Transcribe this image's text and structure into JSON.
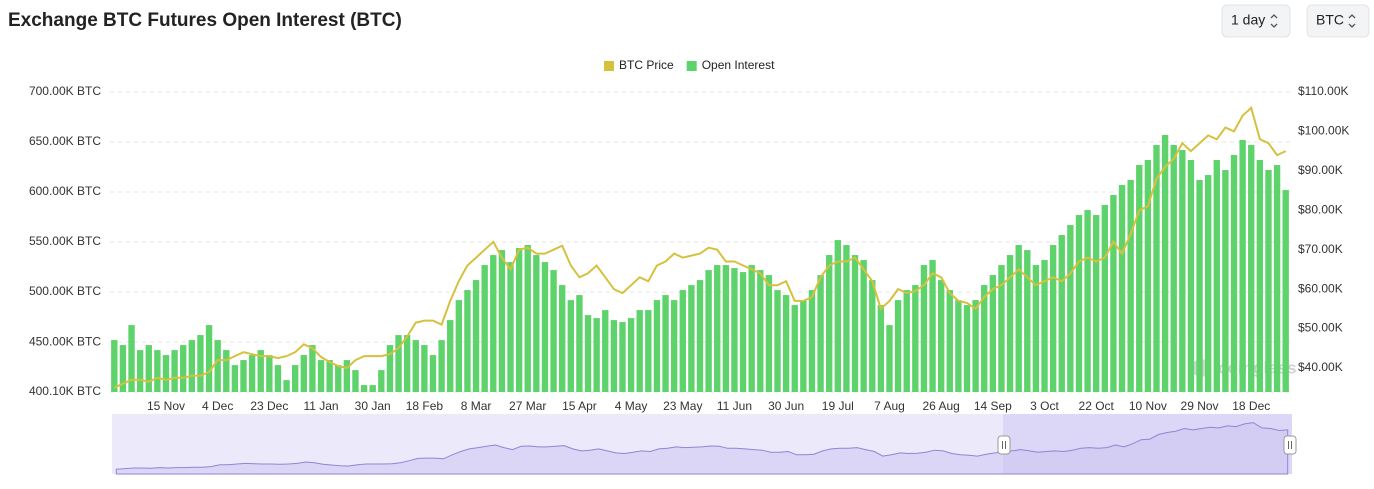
{
  "chart_data": {
    "type": "bar",
    "title": "Exchange BTC Futures Open Interest (BTC)",
    "controls": [
      "1 day",
      "BTC"
    ],
    "watermark": "coinglass",
    "categories": [
      null,
      null,
      null,
      null,
      null,
      null,
      "15 Nov",
      null,
      null,
      null,
      null,
      null,
      "4 Dec",
      null,
      null,
      null,
      null,
      null,
      "23 Dec",
      null,
      null,
      null,
      null,
      null,
      "11 Jan",
      null,
      null,
      null,
      null,
      null,
      "30 Jan",
      null,
      null,
      null,
      null,
      null,
      "18 Feb",
      null,
      null,
      null,
      null,
      null,
      "8 Mar",
      null,
      null,
      null,
      null,
      null,
      "27 Mar",
      null,
      null,
      null,
      null,
      null,
      "15 Apr",
      null,
      null,
      null,
      null,
      null,
      "4 May",
      null,
      null,
      null,
      null,
      null,
      "23 May",
      null,
      null,
      null,
      null,
      null,
      "11 Jun",
      null,
      null,
      null,
      null,
      null,
      "30 Jun",
      null,
      null,
      null,
      null,
      null,
      "19 Jul",
      null,
      null,
      null,
      null,
      null,
      "7 Aug",
      null,
      null,
      null,
      null,
      null,
      "26 Aug",
      null,
      null,
      null,
      null,
      null,
      "14 Sep",
      null,
      null,
      null,
      null,
      null,
      "3 Oct",
      null,
      null,
      null,
      null,
      null,
      "22 Oct",
      null,
      null,
      null,
      null,
      null,
      "10 Nov",
      null,
      null,
      null,
      null,
      null,
      "29 Nov",
      null,
      null,
      null,
      null,
      null,
      "18 Dec",
      null,
      null,
      null,
      null
    ],
    "series": [
      {
        "name": "BTC Price",
        "type": "line",
        "axis": "y2",
        "color": "#d6c13e",
        "values": [
          35000,
          36000,
          37000,
          37000,
          36500,
          37500,
          37000,
          37500,
          37500,
          38000,
          38000,
          39000,
          42000,
          42000,
          43000,
          44000,
          43500,
          43000,
          43000,
          42500,
          43000,
          44000,
          46000,
          45000,
          42800,
          41500,
          40500,
          40000,
          42000,
          43000,
          43000,
          43000,
          43500,
          45000,
          48000,
          51500,
          52000,
          52000,
          51000,
          57000,
          62000,
          66000,
          68000,
          70000,
          72000,
          68000,
          65000,
          70000,
          70500,
          69000,
          69000,
          70000,
          71000,
          66000,
          63000,
          64000,
          66000,
          63000,
          60000,
          59000,
          61000,
          63000,
          62000,
          66000,
          67000,
          69000,
          68000,
          68500,
          69000,
          70500,
          70000,
          67000,
          67000,
          66000,
          65000,
          64000,
          61000,
          61000,
          62000,
          57000,
          57000,
          58000,
          63000,
          66000,
          67000,
          67000,
          68000,
          65000,
          62000,
          55000,
          57000,
          60000,
          59000,
          59500,
          61000,
          64000,
          63000,
          59000,
          57000,
          56500,
          55000,
          58000,
          60000,
          61000,
          63000,
          65000,
          63000,
          61000,
          62000,
          63000,
          62000,
          64000,
          67000,
          68000,
          67000,
          68000,
          72000,
          69000,
          74000,
          80000,
          81000,
          88000,
          91000,
          93000,
          97000,
          95000,
          97000,
          99000,
          98000,
          101000,
          100000,
          104000,
          106000,
          98000,
          97000,
          94000,
          95000
        ]
      },
      {
        "name": "Open Interest",
        "type": "bar",
        "axis": "y",
        "color": "#5fd36b",
        "values": [
          452000,
          447000,
          467000,
          442000,
          447000,
          442000,
          437000,
          442000,
          447000,
          452000,
          457000,
          467000,
          452000,
          442000,
          427000,
          432000,
          437000,
          442000,
          437000,
          427000,
          412000,
          427000,
          437000,
          447000,
          432000,
          432000,
          427000,
          432000,
          422000,
          407000,
          407000,
          422000,
          447000,
          457000,
          457000,
          452000,
          447000,
          437000,
          452000,
          472000,
          492000,
          502000,
          512000,
          527000,
          537000,
          542000,
          530000,
          544000,
          547000,
          537000,
          530000,
          522000,
          507000,
          492000,
          497000,
          477000,
          474000,
          482000,
          472000,
          470000,
          474000,
          482000,
          482000,
          492000,
          497000,
          492000,
          502000,
          507000,
          512000,
          522000,
          527000,
          527000,
          524000,
          520000,
          527000,
          522000,
          517000,
          502000,
          497000,
          487000,
          492000,
          502000,
          517000,
          537000,
          552000,
          547000,
          537000,
          532000,
          512000,
          487000,
          467000,
          492000,
          502000,
          507000,
          527000,
          532000,
          512000,
          502000,
          492000,
          487000,
          492000,
          507000,
          517000,
          527000,
          537000,
          547000,
          542000,
          527000,
          532000,
          547000,
          557000,
          567000,
          577000,
          582000,
          577000,
          587000,
          597000,
          607000,
          612000,
          627000,
          632000,
          647000,
          657000,
          647000,
          642000,
          632000,
          612000,
          617000,
          632000,
          622000,
          637000,
          652000,
          647000,
          632000,
          622000,
          627000,
          602000
        ]
      }
    ],
    "ylim": [
      400100,
      700000
    ],
    "yticks": [
      {
        "value": 400100,
        "label": "400.10K BTC"
      },
      {
        "value": 450000,
        "label": "450.00K BTC"
      },
      {
        "value": 500000,
        "label": "500.00K BTC"
      },
      {
        "value": 550000,
        "label": "550.00K BTC"
      },
      {
        "value": 600000,
        "label": "600.00K BTC"
      },
      {
        "value": 650000,
        "label": "650.00K BTC"
      },
      {
        "value": 700000,
        "label": "700.00K BTC"
      }
    ],
    "y2lim": [
      33900,
      110000
    ],
    "y2ticks": [
      {
        "value": 40000,
        "label": "$40.00K"
      },
      {
        "value": 50000,
        "label": "$50.00K"
      },
      {
        "value": 60000,
        "label": "$60.00K"
      },
      {
        "value": 70000,
        "label": "$70.00K"
      },
      {
        "value": 80000,
        "label": "$80.00K"
      },
      {
        "value": 90000,
        "label": "$90.00K"
      },
      {
        "value": 100000,
        "label": "$100.00K"
      },
      {
        "value": 110000,
        "label": "$110.00K"
      }
    ],
    "grid": true,
    "legend": "top"
  }
}
